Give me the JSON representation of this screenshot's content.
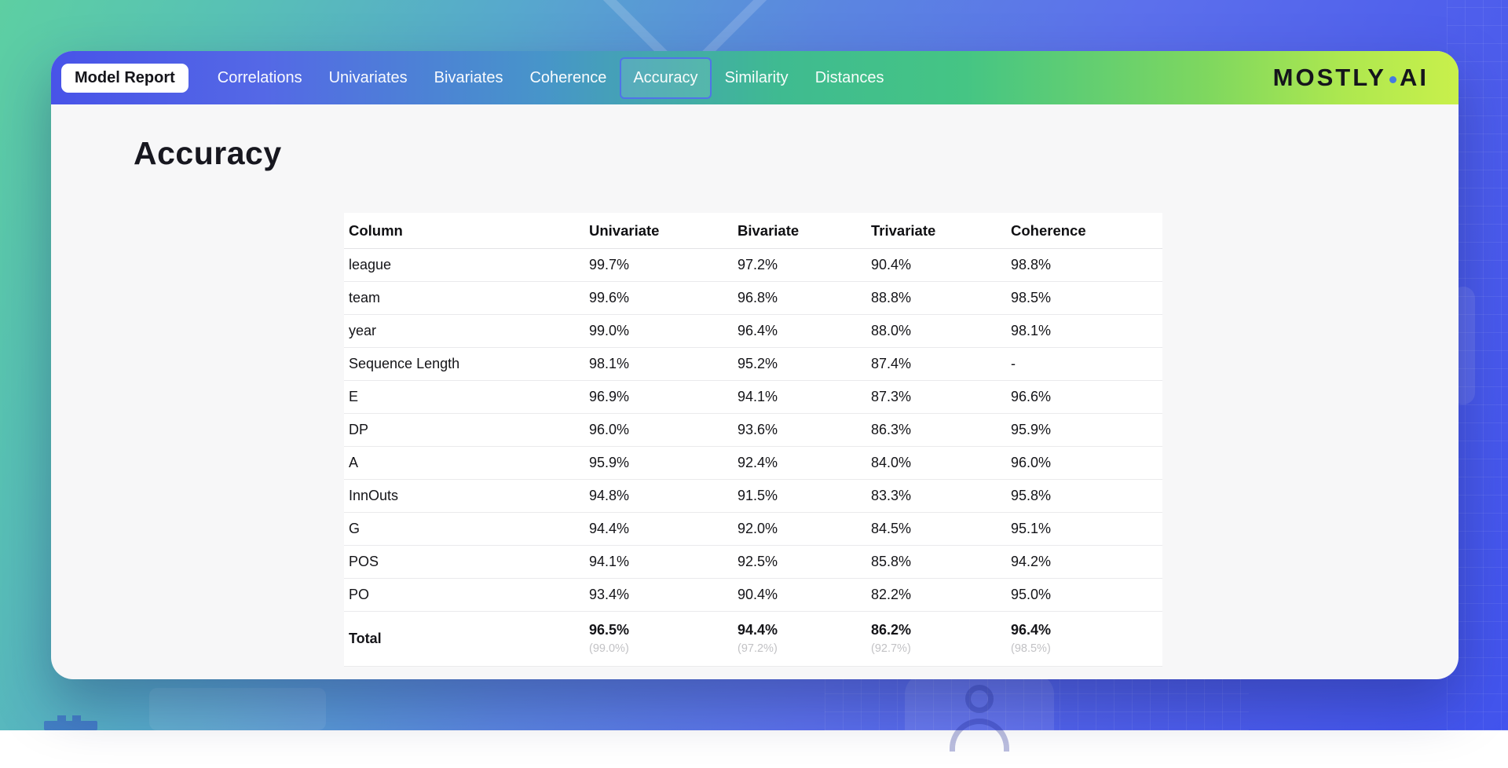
{
  "nav": {
    "badge": "Model Report",
    "items": [
      {
        "label": "Correlations",
        "selected": false
      },
      {
        "label": "Univariates",
        "selected": false
      },
      {
        "label": "Bivariates",
        "selected": false
      },
      {
        "label": "Coherence",
        "selected": false
      },
      {
        "label": "Accuracy",
        "selected": true
      },
      {
        "label": "Similarity",
        "selected": false
      },
      {
        "label": "Distances",
        "selected": false
      }
    ],
    "logo": {
      "left": "MOSTLY",
      "right": "AI"
    }
  },
  "page": {
    "title": "Accuracy"
  },
  "accuracy_table": {
    "headers": [
      "Column",
      "Univariate",
      "Bivariate",
      "Trivariate",
      "Coherence"
    ],
    "rows": [
      {
        "column": "league",
        "values": [
          "99.7%",
          "97.2%",
          "90.4%",
          "98.8%"
        ]
      },
      {
        "column": "team",
        "values": [
          "99.6%",
          "96.8%",
          "88.8%",
          "98.5%"
        ]
      },
      {
        "column": "year",
        "values": [
          "99.0%",
          "96.4%",
          "88.0%",
          "98.1%"
        ]
      },
      {
        "column": "Sequence Length",
        "values": [
          "98.1%",
          "95.2%",
          "87.4%",
          "-"
        ]
      },
      {
        "column": "E",
        "values": [
          "96.9%",
          "94.1%",
          "87.3%",
          "96.6%"
        ]
      },
      {
        "column": "DP",
        "values": [
          "96.0%",
          "93.6%",
          "86.3%",
          "95.9%"
        ]
      },
      {
        "column": "A",
        "values": [
          "95.9%",
          "92.4%",
          "84.0%",
          "96.0%"
        ]
      },
      {
        "column": "InnOuts",
        "values": [
          "94.8%",
          "91.5%",
          "83.3%",
          "95.8%"
        ]
      },
      {
        "column": "G",
        "values": [
          "94.4%",
          "92.0%",
          "84.5%",
          "95.1%"
        ]
      },
      {
        "column": "POS",
        "values": [
          "94.1%",
          "92.5%",
          "85.8%",
          "94.2%"
        ]
      },
      {
        "column": "PO",
        "values": [
          "93.4%",
          "90.4%",
          "82.2%",
          "95.0%"
        ]
      }
    ],
    "total_row": {
      "label": "Total",
      "values": [
        "96.5%",
        "94.4%",
        "86.2%",
        "96.4%"
      ],
      "sub_values": [
        "(99.0%)",
        "(97.2%)",
        "(92.7%)",
        "(98.5%)"
      ]
    }
  },
  "colors": {
    "nav_gradient_left": "#4853e8",
    "nav_gradient_mid": "#3fbb90",
    "nav_gradient_right": "#c9f04b",
    "selected_tab_border": "#5070eb",
    "logo_dot": "#4479e2",
    "page_gradient_start": "#5dcfa2",
    "page_gradient_end": "#4254ee",
    "content_background": "#f7f7f8",
    "total_subvalue_text": "#c2c2c5"
  }
}
